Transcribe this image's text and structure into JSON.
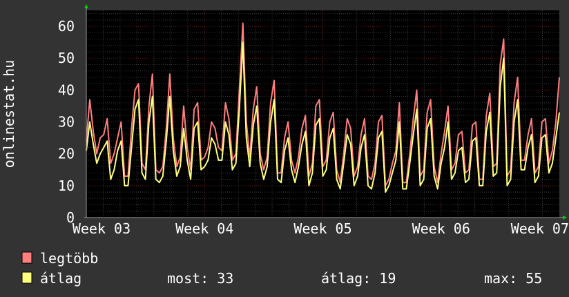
{
  "chart_data": {
    "type": "line",
    "ylabel": "onlinestat.hu",
    "ylim": [
      0,
      65
    ],
    "yticks": [
      0,
      10,
      20,
      30,
      40,
      50,
      60
    ],
    "xticks": [
      "Week 03",
      "Week 04",
      "Week 05",
      "Week 06",
      "Week 07"
    ],
    "grid": true,
    "series": [
      {
        "name": "legtöbb",
        "color": "#ff7f7f",
        "values": [
          24,
          37,
          27,
          20,
          25,
          26,
          31,
          17,
          20,
          25,
          30,
          13,
          13,
          28,
          40,
          42,
          17,
          15,
          35,
          45,
          15,
          14,
          16,
          28,
          45,
          25,
          16,
          19,
          35,
          22,
          15,
          34,
          36,
          18,
          19,
          22,
          30,
          28,
          22,
          21,
          36,
          31,
          18,
          20,
          40,
          61,
          30,
          19,
          34,
          41,
          20,
          15,
          19,
          36,
          43,
          14,
          14,
          25,
          30,
          18,
          14,
          19,
          28,
          32,
          13,
          17,
          35,
          37,
          16,
          18,
          30,
          33,
          15,
          11,
          20,
          31,
          28,
          13,
          16,
          26,
          31,
          13,
          12,
          17,
          30,
          32,
          10,
          12,
          17,
          21,
          36,
          11,
          11,
          20,
          31,
          40,
          13,
          15,
          33,
          37,
          16,
          11,
          20,
          27,
          35,
          15,
          17,
          26,
          27,
          14,
          15,
          29,
          30,
          12,
          12,
          32,
          39,
          16,
          17,
          48,
          56,
          13,
          15,
          36,
          44,
          18,
          18,
          26,
          31,
          14,
          16,
          30,
          31,
          17,
          21,
          30,
          44
        ]
      },
      {
        "name": "átlag",
        "color": "#ffff7f",
        "values": [
          21,
          30,
          23,
          17,
          20,
          22,
          24,
          12,
          15,
          21,
          24,
          10,
          10,
          22,
          34,
          37,
          14,
          12,
          30,
          38,
          12,
          11,
          13,
          24,
          38,
          21,
          13,
          16,
          28,
          18,
          12,
          28,
          30,
          15,
          16,
          18,
          25,
          23,
          18,
          18,
          30,
          26,
          15,
          17,
          34,
          55,
          25,
          16,
          29,
          35,
          17,
          12,
          16,
          30,
          37,
          12,
          11,
          21,
          25,
          15,
          11,
          16,
          23,
          27,
          10,
          14,
          29,
          31,
          13,
          15,
          25,
          28,
          12,
          9,
          17,
          26,
          23,
          10,
          13,
          22,
          26,
          10,
          9,
          14,
          25,
          27,
          8,
          10,
          14,
          18,
          30,
          9,
          9,
          17,
          26,
          34,
          10,
          12,
          28,
          31,
          13,
          9,
          17,
          22,
          30,
          12,
          14,
          21,
          22,
          11,
          12,
          24,
          25,
          10,
          10,
          27,
          33,
          13,
          14,
          41,
          50,
          10,
          12,
          30,
          37,
          15,
          15,
          22,
          26,
          11,
          13,
          25,
          26,
          14,
          17,
          25,
          33
        ]
      }
    ],
    "legend": [
      {
        "label": "legtöbb",
        "color": "#ff7f7f"
      },
      {
        "label": "átlag",
        "color": "#ffff7f"
      }
    ],
    "stats": {
      "most": "most: 33",
      "atlag": "átlag: 19",
      "max": "max: 55"
    }
  }
}
